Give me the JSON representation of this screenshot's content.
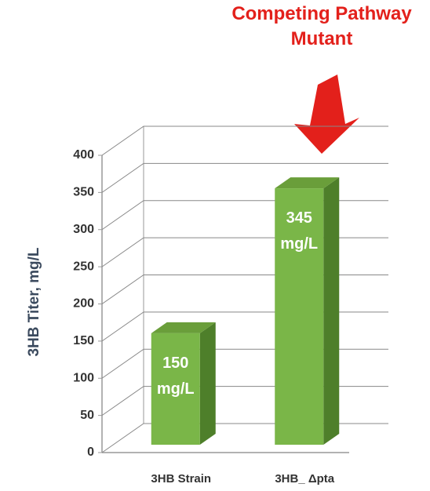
{
  "chart_data": {
    "type": "bar3d",
    "annotation": "Competing Pathway Mutant",
    "ylabel": "3HB Titer, mg/L",
    "categories": [
      "3HB Strain",
      "3HB_ Δpta"
    ],
    "values": [
      150,
      345
    ],
    "value_labels": [
      "150 mg/L",
      "345 mg/L"
    ],
    "color": "#7ab648",
    "ylim": [
      0,
      400
    ],
    "yticks": [
      0,
      50,
      100,
      150,
      200,
      250,
      300,
      350,
      400
    ],
    "grid": true
  }
}
